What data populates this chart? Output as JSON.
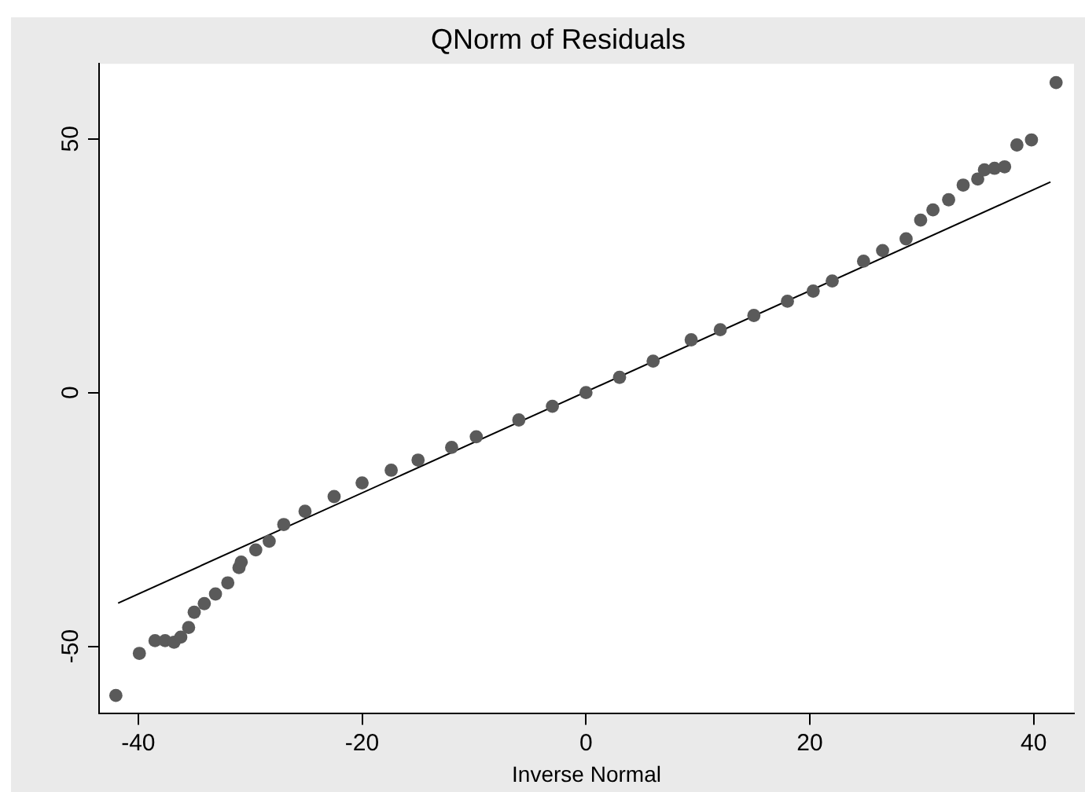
{
  "chart_data": {
    "type": "scatter",
    "title": "QNorm of Residuals",
    "xlabel": "Inverse Normal",
    "xlim": [
      -43.5,
      43.6
    ],
    "ylim": [
      -63.3,
      64.8
    ],
    "xticks": [
      -40,
      -20,
      0,
      20,
      40
    ],
    "yticks": [
      -50,
      0,
      50
    ],
    "grid": false,
    "legend": false,
    "marker": "circle",
    "series": [
      {
        "color": "#5a5a5a",
        "x": [
          -42.0,
          -39.9,
          -38.5,
          -37.6,
          -36.8,
          -36.2,
          -35.5,
          -35.0,
          -34.1,
          -33.1,
          -32.0,
          -31.0,
          -30.8,
          -29.5,
          -28.3,
          -27.0,
          -25.1,
          -22.5,
          -20.0,
          -17.4,
          -15.0,
          -12.0,
          -9.8,
          -6.0,
          -3.0,
          0.0,
          3.0,
          6.0,
          9.4,
          12.0,
          15.0,
          18.0,
          20.3,
          22.0,
          24.8,
          26.5,
          28.6,
          29.9,
          31.0,
          32.4,
          33.7,
          35.0,
          35.6,
          36.5,
          37.4,
          38.5,
          39.8,
          42.0
        ],
        "values": [
          -59.7,
          -51.4,
          -48.9,
          -48.9,
          -49.2,
          -48.2,
          -46.3,
          -43.3,
          -41.6,
          -39.7,
          -37.5,
          -34.5,
          -33.4,
          -31.0,
          -29.3,
          -26.0,
          -23.4,
          -20.5,
          -17.8,
          -15.3,
          -13.3,
          -10.8,
          -8.7,
          -5.4,
          -2.7,
          0.0,
          3.0,
          6.2,
          10.4,
          12.4,
          15.2,
          18.0,
          20.0,
          22.0,
          25.9,
          28.0,
          30.3,
          34.0,
          36.0,
          38.0,
          40.9,
          42.1,
          43.9,
          44.2,
          44.5,
          48.8,
          49.8,
          61.1
        ]
      },
      {
        "type": "line",
        "color": "#000000",
        "marker": "none",
        "x": [
          -41.8,
          41.5
        ],
        "values": [
          -41.5,
          41.5
        ]
      }
    ]
  }
}
